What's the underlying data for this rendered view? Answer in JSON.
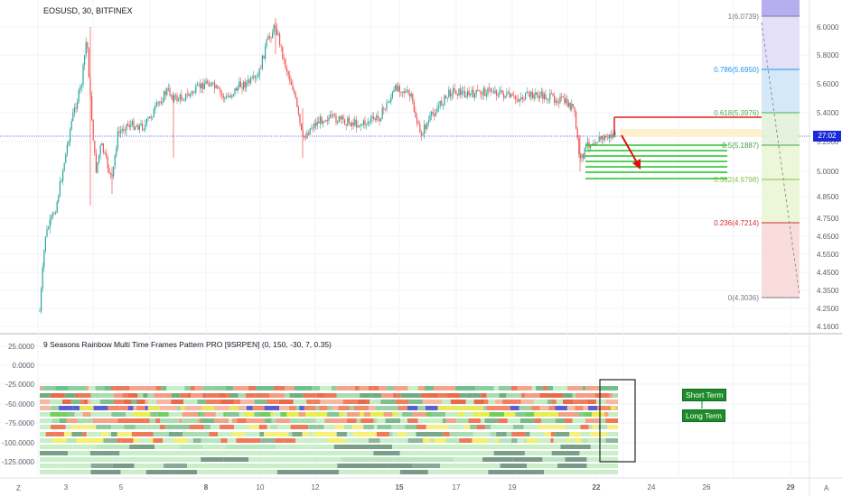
{
  "symbol_title": "EOSUSD, 30, BITFINEX",
  "indicator_title": "9 Seasons Rainbow Multi Time Frames Pattern PRO [9SRPEN] (0, 150, -30, 7, 0.35)",
  "current_price_label": "27:02",
  "corner_left": "Z",
  "corner_right": "A",
  "price_axis": [
    "6.0000",
    "5.8000",
    "5.6000",
    "5.4000",
    "5.2000",
    "5.0000",
    "4.8500",
    "4.7500",
    "4.6500",
    "4.5500",
    "4.4500",
    "4.3500",
    "4.2500",
    "4.1600"
  ],
  "indicator_axis": [
    "25.0000",
    "0.0000",
    "-25.0000",
    "-50.0000",
    "-75.0000",
    "-100.0000",
    "-125.0000"
  ],
  "time_axis": [
    "3",
    "5",
    "8",
    "10",
    "12",
    "15",
    "17",
    "19",
    "22",
    "24",
    "26",
    "29"
  ],
  "fib_levels": [
    {
      "label": "1(6.0739)",
      "color": "#787b86"
    },
    {
      "label": "0.786(5.6950)",
      "color": "#2196f3"
    },
    {
      "label": "0.618(5.3976)",
      "color": "#4caf50"
    },
    {
      "label": "0.5(5.1887)",
      "color": "#43a047"
    },
    {
      "label": "0.382(4.9798)",
      "color": "#8bc34a"
    },
    {
      "label": "0.236(4.7214)",
      "color": "#d32f2f"
    },
    {
      "label": "0(4.3036)",
      "color": "#787b86"
    }
  ],
  "badges": {
    "short_term": "Short Term",
    "long_term": "Long Term"
  },
  "colors": {
    "up": "#26a69a",
    "down": "#ef5350",
    "accent": "#1b2bdb",
    "badge": "#1e8c2a"
  }
}
